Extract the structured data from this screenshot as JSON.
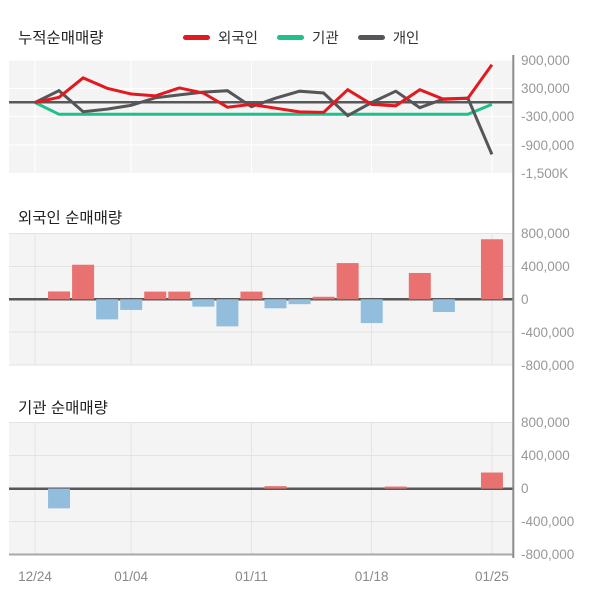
{
  "colors": {
    "foreign_line": "#e2191f",
    "inst_line": "#1fc08a",
    "indiv_line": "#55565a",
    "bar_positive": "#e97270",
    "bar_negative": "#92bddd",
    "plot_bg": "#f4f4f4",
    "grid_light": "#e3e3e3",
    "grid_white": "#ffffff",
    "zero_line": "#58585a",
    "right_axis": "#8c8c8c",
    "bottom_axis": "#a9a9a9"
  },
  "x_axis": {
    "n_points": 20,
    "tick_labels": [
      {
        "label": "12/24",
        "index": 0
      },
      {
        "label": "01/04",
        "index": 4
      },
      {
        "label": "01/11",
        "index": 9
      },
      {
        "label": "01/18",
        "index": 14
      },
      {
        "label": "01/25",
        "index": 19
      }
    ]
  },
  "chart_data": [
    {
      "type": "line",
      "title": "누적순매매량",
      "ylim": [
        -1500000,
        900000
      ],
      "grid": "on",
      "legend_position": "top",
      "y_ticks": [
        {
          "value": 900000,
          "label": "900,000"
        },
        {
          "value": 300000,
          "label": "300,000"
        },
        {
          "value": -300000,
          "label": "-300,000"
        },
        {
          "value": -900000,
          "label": "-900,000"
        },
        {
          "value": -1500000,
          "label": "-1,500K"
        }
      ],
      "legend": [
        {
          "label": "외국인",
          "color_key": "foreign_line"
        },
        {
          "label": "기관",
          "color_key": "inst_line"
        },
        {
          "label": "개인",
          "color_key": "indiv_line"
        }
      ],
      "series": [
        {
          "name": "외국인",
          "color_key": "foreign_line",
          "values": [
            0,
            110000,
            520000,
            300000,
            180000,
            140000,
            310000,
            200000,
            -100000,
            -40000,
            -120000,
            -200000,
            -210000,
            270000,
            -40000,
            -70000,
            270000,
            65000,
            90000,
            800000
          ]
        },
        {
          "name": "기관",
          "color_key": "inst_line",
          "values": [
            0,
            -250000,
            -250000,
            -250000,
            -250000,
            -250000,
            -250000,
            -250000,
            -250000,
            -250000,
            -250000,
            -250000,
            -250000,
            -250000,
            -250000,
            -250000,
            -250000,
            -250000,
            -250000,
            -40000
          ]
        },
        {
          "name": "개인",
          "color_key": "indiv_line",
          "values": [
            0,
            250000,
            -195000,
            -140000,
            -60000,
            100000,
            160000,
            220000,
            250000,
            -90000,
            90000,
            240000,
            200000,
            -280000,
            0,
            240000,
            -110000,
            75000,
            90000,
            -1100000
          ]
        }
      ]
    },
    {
      "type": "bar",
      "title": "외국인 순매매량",
      "ylim": [
        -800000,
        800000
      ],
      "grid": "on",
      "y_ticks": [
        {
          "value": 800000,
          "label": "800,000"
        },
        {
          "value": 400000,
          "label": "400,000"
        },
        {
          "value": 0,
          "label": "0"
        },
        {
          "value": -400000,
          "label": "-400,000"
        },
        {
          "value": -800000,
          "label": "-800,000"
        }
      ],
      "values": [
        0,
        95000,
        420000,
        -245000,
        -130000,
        93000,
        93000,
        -90000,
        -330000,
        93000,
        -110000,
        -60000,
        30000,
        440000,
        -290000,
        0,
        320000,
        -155000,
        0,
        730000
      ]
    },
    {
      "type": "bar",
      "title": "기관 순매매량",
      "ylim": [
        -800000,
        800000
      ],
      "grid": "on",
      "y_ticks": [
        {
          "value": 800000,
          "label": "800,000"
        },
        {
          "value": 400000,
          "label": "400,000"
        },
        {
          "value": 0,
          "label": "0"
        },
        {
          "value": -400000,
          "label": "-400,000"
        },
        {
          "value": -800000,
          "label": "-800,000"
        }
      ],
      "values": [
        0,
        -240000,
        0,
        0,
        0,
        0,
        0,
        0,
        0,
        0,
        30000,
        0,
        0,
        0,
        0,
        25000,
        0,
        0,
        0,
        195000
      ]
    }
  ]
}
